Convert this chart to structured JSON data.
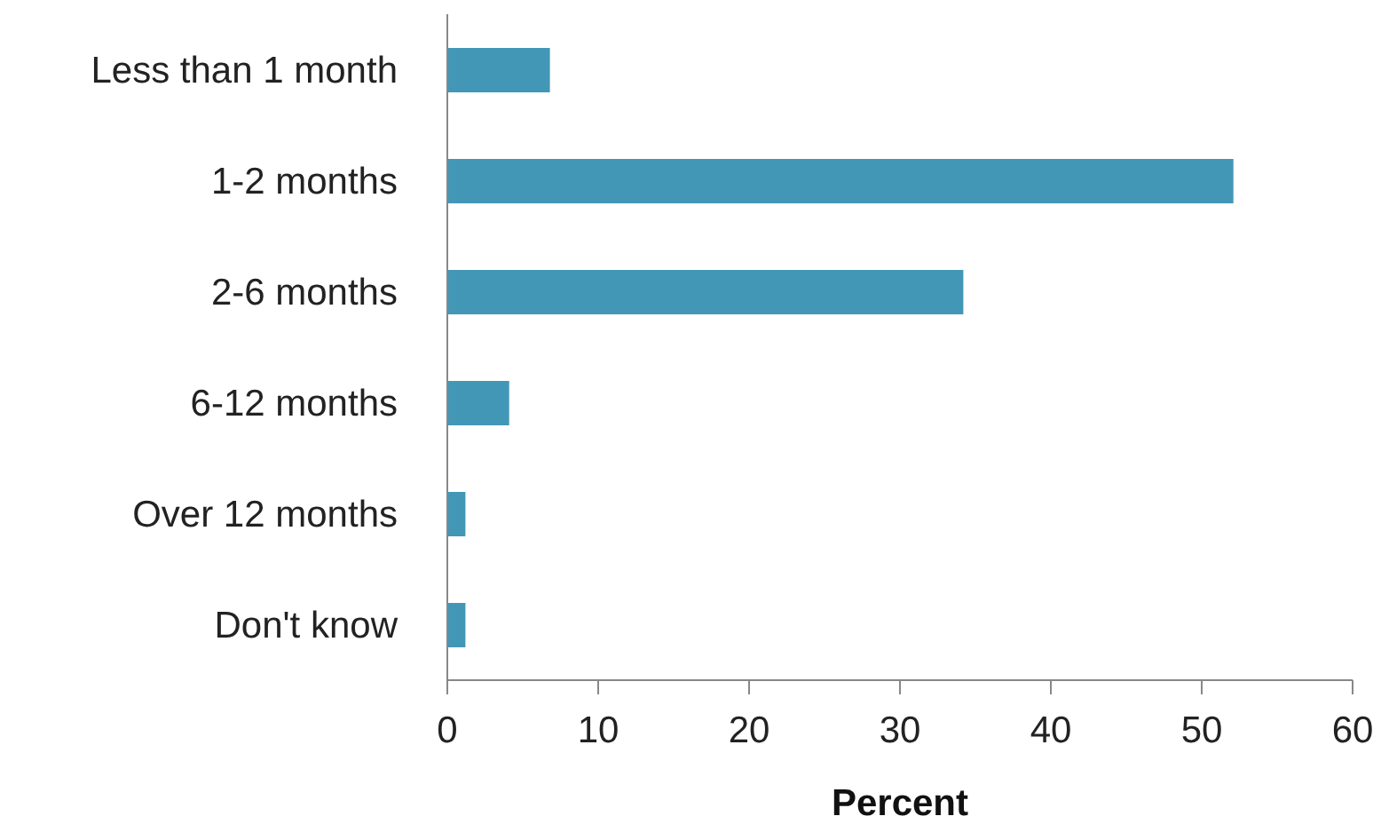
{
  "chart_data": {
    "type": "bar",
    "orientation": "horizontal",
    "xlabel": "Percent",
    "categories": [
      "Less than 1 month",
      "1-2 months",
      "2-6 months",
      "6-12 months",
      "Over 12 months",
      "Don't know"
    ],
    "values": [
      6.8,
      52.1,
      34.2,
      4.1,
      1.2,
      1.2
    ],
    "color": "#4397b6",
    "xlim": [
      0,
      60
    ],
    "xticks": [
      0,
      10,
      20,
      30,
      40,
      50,
      60
    ],
    "grid": false,
    "legend": false
  }
}
